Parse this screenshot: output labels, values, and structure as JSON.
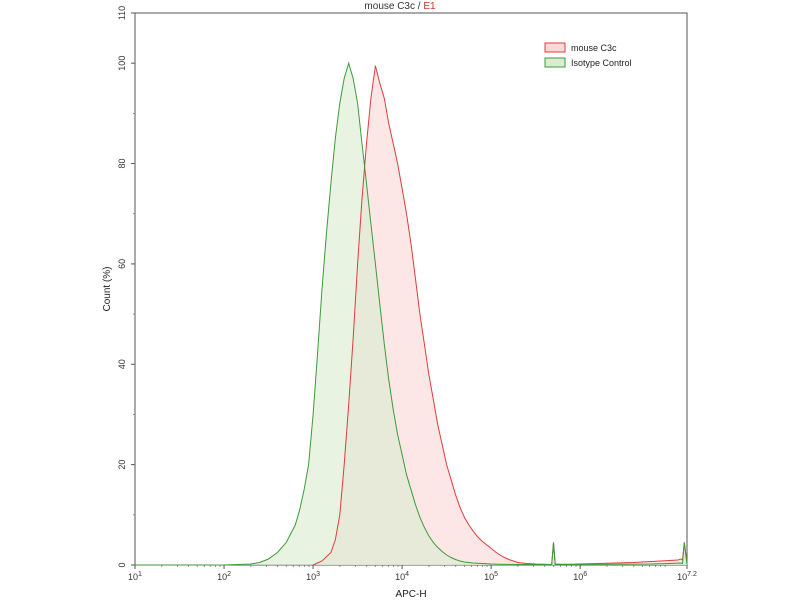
{
  "chart_data": {
    "type": "area",
    "title": "mouse C3c",
    "title_separator": "/",
    "title_gate": "E1",
    "xlabel": "APC-H",
    "ylabel": "Count (%)",
    "x_scale": "log10",
    "xlim": [
      10,
      15848932
    ],
    "ylim": [
      0,
      110
    ],
    "grid": false,
    "legend_position": "top-right",
    "x_ticks": [
      {
        "value": 10,
        "base": "10",
        "exp": "1"
      },
      {
        "value": 100,
        "base": "10",
        "exp": "2"
      },
      {
        "value": 1000,
        "base": "10",
        "exp": "3"
      },
      {
        "value": 10000,
        "base": "10",
        "exp": "4"
      },
      {
        "value": 100000,
        "base": "10",
        "exp": "5"
      },
      {
        "value": 1000000,
        "base": "10",
        "exp": "6"
      },
      {
        "value": 15848932,
        "base": "10",
        "exp": "7.2"
      }
    ],
    "y_ticks": [
      "0",
      "20",
      "40",
      "60",
      "80",
      "100",
      "110"
    ],
    "series": [
      {
        "name": "mouse C3c",
        "line_color": "#e03c3c",
        "fill_color": "#fcd9d9",
        "x": [
          1000,
          1259,
          1585,
          1778,
          1995,
          2239,
          2512,
          2818,
          3162,
          3548,
          3981,
          4467,
          5012,
          5623,
          6310,
          7079,
          7943,
          8913,
          10000,
          11220,
          12589,
          14125,
          15849,
          17783,
          19953,
          22387,
          25119,
          28184,
          31623,
          35481,
          39811,
          44668,
          50119,
          56234,
          63096,
          70795,
          79433,
          89125,
          100000,
          112202,
          125893,
          141254,
          158489,
          177828,
          199526,
          251189,
          316228,
          398107,
          478630,
          501187,
          524807,
          630957,
          794328,
          1000000,
          1584893,
          2511886,
          3981072,
          6309573,
          10000000,
          12589254,
          13489629,
          14125375,
          14791084,
          15848932
        ],
        "y": [
          0,
          0.8,
          2.5,
          5,
          10,
          20,
          32,
          45,
          60,
          73,
          84,
          93,
          99.5,
          96,
          93,
          88,
          84,
          80,
          75,
          70,
          64,
          57,
          50,
          44,
          38,
          33,
          28,
          24,
          20,
          17,
          14,
          11.5,
          9.5,
          8,
          6.7,
          5.6,
          4.7,
          4,
          3.3,
          2.6,
          2,
          1.5,
          1.1,
          0.8,
          0.5,
          0.3,
          0.2,
          0.15,
          0.1,
          4.5,
          0.2,
          0.15,
          0.15,
          0.2,
          0.3,
          0.4,
          0.5,
          0.7,
          0.9,
          1.0,
          1.2,
          1.0,
          4.5,
          0.3
        ]
      },
      {
        "name": "Isotype Control",
        "line_color": "#3c9a3c",
        "fill_color": "#dcecd2",
        "x": [
          10,
          100,
          200,
          251,
          316,
          398,
          501,
          631,
          708,
          794,
          891,
          1000,
          1122,
          1259,
          1413,
          1585,
          1778,
          1995,
          2239,
          2512,
          2818,
          3162,
          3548,
          3981,
          4467,
          5012,
          5623,
          6310,
          7079,
          7943,
          8913,
          10000,
          11220,
          12589,
          14125,
          15849,
          17783,
          19953,
          22387,
          25119,
          28184,
          31623,
          35481,
          39811,
          44668,
          50119,
          63096,
          79433,
          100000,
          125893,
          199526,
          316228,
          478630,
          501187,
          524807,
          794328,
          1000000,
          2511886,
          6309573,
          10000000,
          13489629,
          14125375,
          14791084,
          15848932
        ],
        "y": [
          0,
          0,
          0.2,
          0.5,
          1.2,
          2.5,
          4.5,
          8,
          11,
          15,
          20,
          30,
          42,
          55,
          66,
          76,
          85,
          92,
          97,
          100,
          97,
          92,
          84,
          76,
          68,
          60,
          52,
          44,
          37,
          31,
          26,
          22,
          18,
          15,
          12,
          9.5,
          7.5,
          5.8,
          4.5,
          3.5,
          2.7,
          2,
          1.5,
          1.1,
          0.8,
          0.6,
          0.4,
          0.3,
          0.2,
          0.15,
          0.1,
          0.1,
          0.1,
          4.5,
          0.1,
          0.1,
          0.1,
          0.15,
          0.2,
          0.3,
          0.4,
          0.3,
          4.5,
          0.2
        ]
      }
    ]
  }
}
